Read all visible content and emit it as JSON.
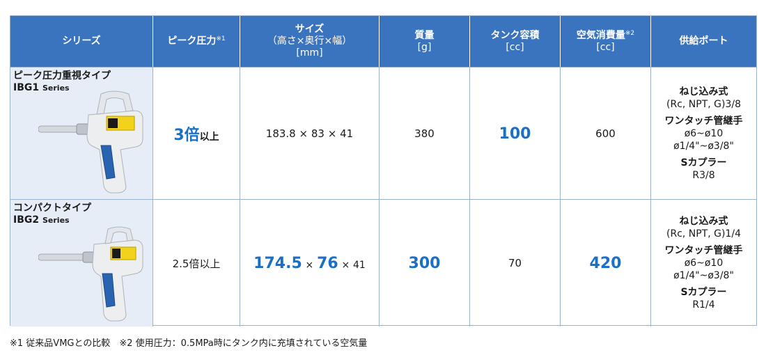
{
  "header": {
    "series": "シリーズ",
    "peak_pressure": "ピーク圧力",
    "peak_note": "※1",
    "size_title": "サイズ",
    "size_sub": "（高さ×奥行×幅）",
    "size_unit": "[mm]",
    "mass_title": "質量",
    "mass_unit": "[g]",
    "tank_title": "タンク容積",
    "tank_unit": "[cc]",
    "air_title": "空気消費量",
    "air_note": "※2",
    "air_unit": "[cc]",
    "port_title": "供給ポート"
  },
  "rows": [
    {
      "type_name": "ピーク圧力重視タイプ",
      "code": "IBG1",
      "code_suffix": "Series",
      "peak_value": "3倍",
      "peak_suffix": "以上",
      "size_h": "183.8",
      "size_d": "83",
      "size_w": "41",
      "mass": "380",
      "tank": "100",
      "air": "600",
      "port_type1": "ねじ込み式",
      "port_val1": "(Rc, NPT, G)3/8",
      "port_type2": "ワンタッチ管継手",
      "port_val2a": "ø6~ø10",
      "port_val2b": "ø1/4\"~ø3/8\"",
      "port_type3": "Sカプラー",
      "port_val3": "R3/8"
    },
    {
      "type_name": "コンパクトタイプ",
      "code": "IBG2",
      "code_suffix": "Series",
      "peak_value": "2.5倍以上",
      "size_h": "174.5",
      "size_d": "76",
      "size_w": "41",
      "mass": "300",
      "tank": "70",
      "air": "420",
      "port_type1": "ねじ込み式",
      "port_val1": "(Rc, NPT, G)1/4",
      "port_type2": "ワンタッチ管継手",
      "port_val2a": "ø6~ø10",
      "port_val2b": "ø1/4\"~ø3/8\"",
      "port_type3": "Sカプラー",
      "port_val3": "R1/4"
    }
  ],
  "times": "×",
  "footnote": "※1 従来品VMGとの比較　※2 使用圧力：0.5MPa時にタンク内に充填されている空気量",
  "colors": {
    "header_bg": "#3b74be",
    "highlight": "#1b6fc4",
    "series_bg": "#e6edf7",
    "border": "#9cb3cf"
  },
  "icons": [
    "air-gun-image"
  ]
}
